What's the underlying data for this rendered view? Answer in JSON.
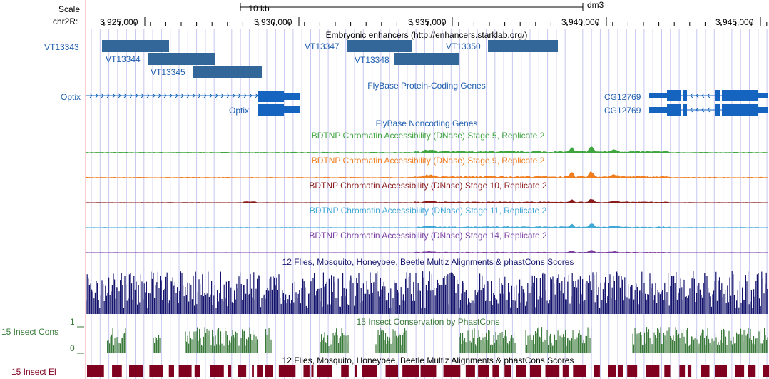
{
  "header": {
    "scale_label": "Scale",
    "chrom_label": "chr2R:",
    "scale_bar_text": "10 kb",
    "assembly": "dm3",
    "ticks": [
      "3,925,000",
      "3,930,000",
      "3,935,000",
      "3,940,000",
      "3,945,000"
    ]
  },
  "enhancer_track": {
    "title": "Embryonic enhancers (http://enhancers.starklab.org/)",
    "items": [
      "VT13343",
      "VT13344",
      "VT13345",
      "VT13347",
      "VT13348",
      "VT13350"
    ]
  },
  "protein_genes": {
    "title": "FlyBase Protein-Coding Genes",
    "left_gene_1": "Optix",
    "left_gene_2": "Optix",
    "right_gene_1": "CG12769",
    "right_gene_2": "CG12769"
  },
  "noncoding": {
    "title": "FlyBase Noncoding Genes"
  },
  "dnase_tracks": [
    {
      "title": "BDTNP Chromatin Accessibility (DNase) Stage 5, Replicate 2",
      "color": "#3fa53f"
    },
    {
      "title": "BDTNP Chromatin Accessibility (DNase) Stage 9, Replicate 2",
      "color": "#f07d1e"
    },
    {
      "title": "BDTNP Chromatin Accessibility (DNase) Stage 10, Replicate 2",
      "color": "#8b1a1a"
    },
    {
      "title": "BDTNP Chromatin Accessibility (DNase) Stage 11, Replicate 2",
      "color": "#3ea8d6"
    },
    {
      "title": "BDTNP Chromatin Accessibility (DNase) Stage 14, Replicate 2",
      "color": "#7b3fa0"
    }
  ],
  "multiz": {
    "title": "12 Flies, Mosquito, Honeybee, Beetle Multiz Alignments & phastCons Scores",
    "color": "#14146e"
  },
  "cons": {
    "title": "15 Insect Conservation by PhastCons",
    "side_label": "15 Insect Cons",
    "axis_max": "1",
    "axis_min": "0",
    "color": "#3a7a3a"
  },
  "elements": {
    "title": "12 Flies, Mosquito, Honeybee, Beetle Multiz Alignments & phastCons Scores",
    "side_label": "15 Insect El",
    "color": "#800020"
  },
  "colors": {
    "gene": "#1565c0",
    "enhancer": "#336699",
    "grid": "#c8c8f0",
    "left_border": "#f4a0a0"
  }
}
